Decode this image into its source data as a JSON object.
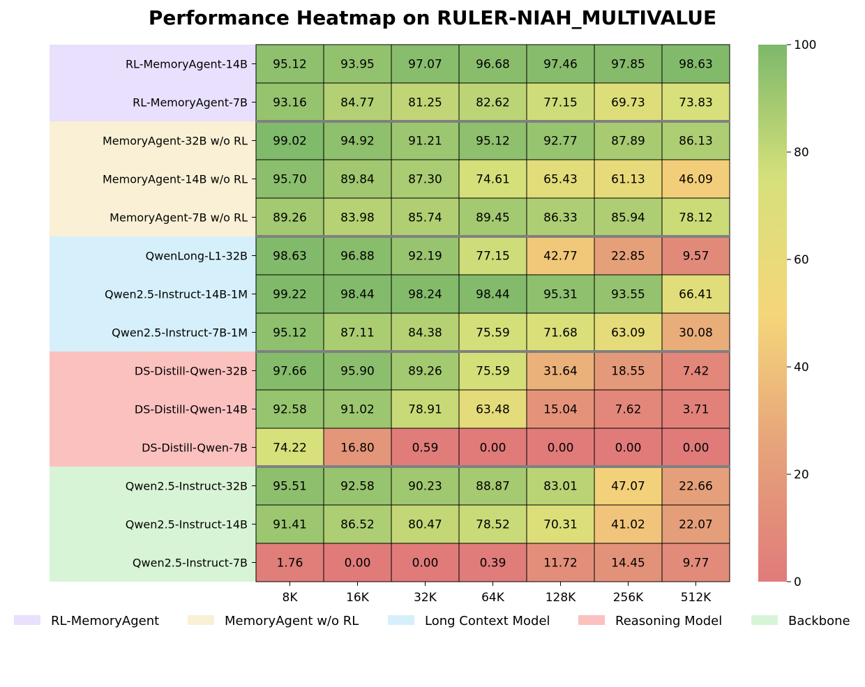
{
  "chart_data": {
    "type": "heatmap",
    "title": "Performance Heatmap on RULER-NIAH_MULTIVALUE",
    "categories": [
      "8K",
      "16K",
      "32K",
      "64K",
      "128K",
      "256K",
      "512K"
    ],
    "rows": [
      "RL-MemoryAgent-14B",
      "RL-MemoryAgent-7B",
      "MemoryAgent-32B w/o RL",
      "MemoryAgent-14B w/o RL",
      "MemoryAgent-7B w/o RL",
      "QwenLong-L1-32B",
      "Qwen2.5-Instruct-14B-1M",
      "Qwen2.5-Instruct-7B-1M",
      "DS-Distill-Qwen-32B",
      "DS-Distill-Qwen-14B",
      "DS-Distill-Qwen-7B",
      "Qwen2.5-Instruct-32B",
      "Qwen2.5-Instruct-14B",
      "Qwen2.5-Instruct-7B"
    ],
    "values": [
      [
        "95.12",
        "93.95",
        "97.07",
        "96.68",
        "97.46",
        "97.85",
        "98.63"
      ],
      [
        "93.16",
        "84.77",
        "81.25",
        "82.62",
        "77.15",
        "69.73",
        "73.83"
      ],
      [
        "99.02",
        "94.92",
        "91.21",
        "95.12",
        "92.77",
        "87.89",
        "86.13"
      ],
      [
        "95.70",
        "89.84",
        "87.30",
        "74.61",
        "65.43",
        "61.13",
        "46.09"
      ],
      [
        "89.26",
        "83.98",
        "85.74",
        "89.45",
        "86.33",
        "85.94",
        "78.12"
      ],
      [
        "98.63",
        "96.88",
        "92.19",
        "77.15",
        "42.77",
        "22.85",
        "9.57"
      ],
      [
        "99.22",
        "98.44",
        "98.24",
        "98.44",
        "95.31",
        "93.55",
        "66.41"
      ],
      [
        "95.12",
        "87.11",
        "84.38",
        "75.59",
        "71.68",
        "63.09",
        "30.08"
      ],
      [
        "97.66",
        "95.90",
        "89.26",
        "75.59",
        "31.64",
        "18.55",
        "7.42"
      ],
      [
        "92.58",
        "91.02",
        "78.91",
        "63.48",
        "15.04",
        "7.62",
        "3.71"
      ],
      [
        "74.22",
        "16.80",
        "0.59",
        "0.00",
        "0.00",
        "0.00",
        "0.00"
      ],
      [
        "95.51",
        "92.58",
        "90.23",
        "88.87",
        "83.01",
        "47.07",
        "22.66"
      ],
      [
        "91.41",
        "86.52",
        "80.47",
        "78.52",
        "70.31",
        "41.02",
        "22.07"
      ],
      [
        "1.76",
        "0.00",
        "0.00",
        "0.39",
        "11.72",
        "14.45",
        "9.77"
      ]
    ],
    "groups": [
      {
        "name": "RL-MemoryAgent",
        "rows": [
          0,
          1
        ],
        "color": "#e8e0fc"
      },
      {
        "name": "MemoryAgent w/o RL",
        "rows": [
          2,
          3,
          4
        ],
        "color": "#f9f0d5"
      },
      {
        "name": "Long Context Model",
        "rows": [
          5,
          6,
          7
        ],
        "color": "#d6f0fb"
      },
      {
        "name": "Reasoning Model",
        "rows": [
          8,
          9,
          10
        ],
        "color": "#fbc1bf"
      },
      {
        "name": "Backbone",
        "rows": [
          11,
          12,
          13
        ],
        "color": "#d8f4d6"
      }
    ],
    "colorbar": {
      "range": [
        0,
        100
      ],
      "ticks": [
        "0",
        "20",
        "40",
        "60",
        "80",
        "100"
      ],
      "colors": [
        "#e07b7a",
        "#e6a37a",
        "#f5d67a",
        "#d6e07a",
        "#7db86a"
      ]
    },
    "legend_position": "bottom"
  }
}
